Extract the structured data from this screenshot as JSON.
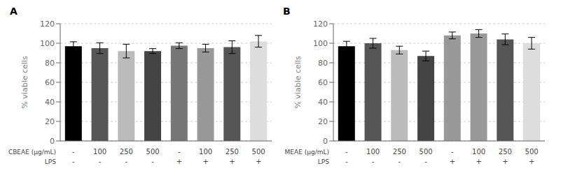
{
  "chart_data": [
    {
      "type": "bar",
      "title": "A",
      "ylabel": "% viable cells",
      "x_label_rows": [
        {
          "name": "CBEAE (μg/mL)",
          "labels": [
            "-",
            "100",
            "250",
            "500",
            "-",
            "100",
            "250",
            "500"
          ]
        },
        {
          "name": "LPS",
          "labels": [
            "-",
            "-",
            "-",
            "-",
            "+",
            "+",
            "+",
            "+"
          ]
        }
      ],
      "values": [
        97,
        95,
        92,
        92,
        97.5,
        95,
        96,
        102
      ],
      "errors": [
        4.5,
        5.5,
        7,
        2.5,
        3,
        4,
        6.5,
        6
      ],
      "colors": [
        "#000000",
        "#555555",
        "#bbbbbb",
        "#444444",
        "#777777",
        "#999999",
        "#555555",
        "#dddddd"
      ],
      "ylim": [
        0,
        120
      ],
      "yticks": [
        0,
        20,
        40,
        60,
        80,
        100,
        120
      ]
    },
    {
      "type": "bar",
      "title": "B",
      "ylabel": "% viable cells",
      "x_label_rows": [
        {
          "name": "MEAE (μg/mL)",
          "labels": [
            "-",
            "100",
            "250",
            "500",
            "-",
            "100",
            "250",
            "500"
          ]
        },
        {
          "name": "LPS",
          "labels": [
            "-",
            "-",
            "-",
            "-",
            "+",
            "+",
            "+",
            "+"
          ]
        }
      ],
      "values": [
        97,
        100,
        93,
        87,
        108,
        110,
        104,
        100
      ],
      "errors": [
        5,
        5,
        4,
        5,
        3.5,
        4,
        5.5,
        6
      ],
      "colors": [
        "#000000",
        "#555555",
        "#bbbbbb",
        "#444444",
        "#999999",
        "#999999",
        "#555555",
        "#dddddd"
      ],
      "ylim": [
        0,
        120
      ],
      "yticks": [
        0,
        20,
        40,
        60,
        80,
        100,
        120
      ]
    }
  ]
}
